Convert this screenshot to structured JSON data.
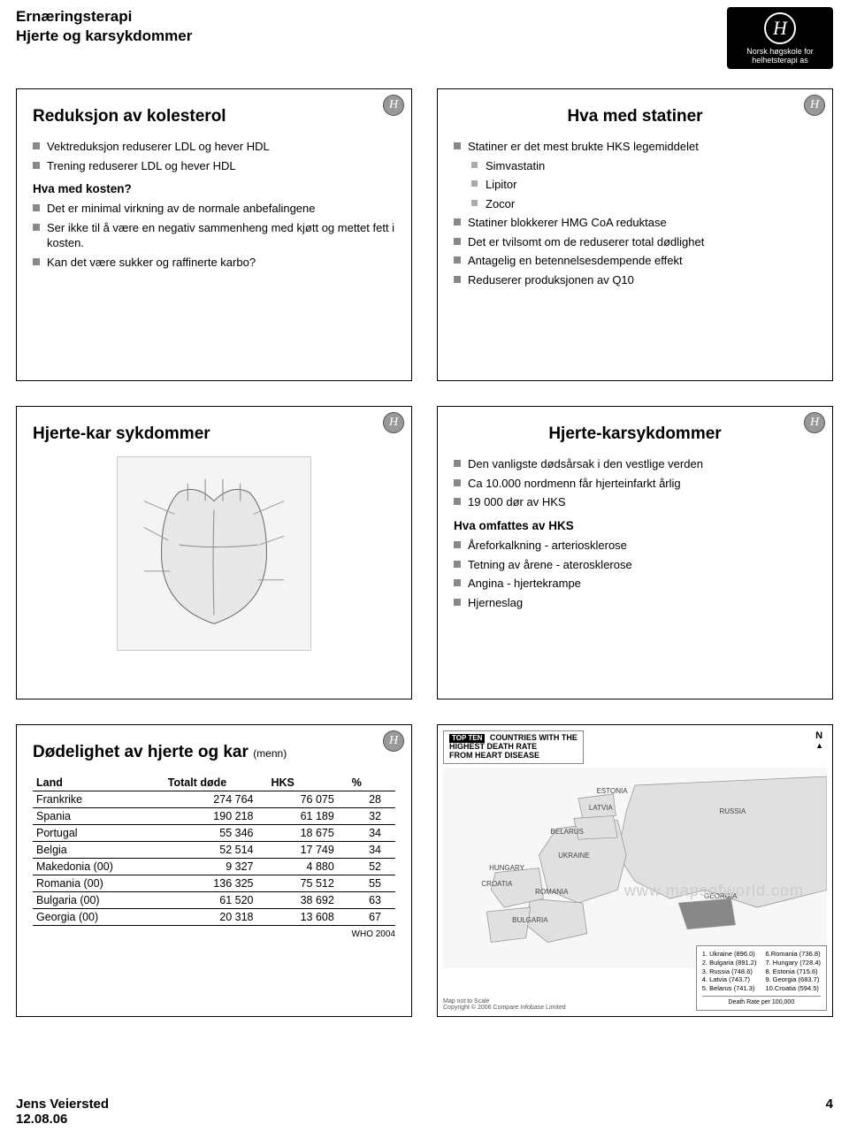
{
  "header": {
    "line1": "Ernæringsterapi",
    "line2": "Hjerte og karsykdommer",
    "logo_text": "Norsk høgskole for helhetsterapi as",
    "logo_letter": "H"
  },
  "colors": {
    "bullet": "#888888",
    "sub_bullet": "#aaaaaa",
    "border": "#000000",
    "map_bg": "#f7f7f7",
    "logo_bg": "#000000"
  },
  "slide1": {
    "title": "Reduksjon av kolesterol",
    "items": [
      "Vektreduksjon reduserer LDL og hever HDL",
      "Trening reduserer LDL og hever HDL"
    ],
    "subheading": "Hva med kosten?",
    "items2": [
      "Det er minimal virkning av de normale anbefalingene",
      "Ser ikke til å være en negativ sammenheng med kjøtt og mettet fett i kosten.",
      "Kan det være sukker og raffinerte karbo?"
    ]
  },
  "slide2": {
    "title": "Hva med statiner",
    "items": [
      {
        "text": "Statiner er det mest brukte HKS legemiddelet",
        "sub": false
      },
      {
        "text": "Simvastatin",
        "sub": true
      },
      {
        "text": "Lipitor",
        "sub": true
      },
      {
        "text": "Zocor",
        "sub": true
      },
      {
        "text": "Statiner blokkerer HMG CoA reduktase",
        "sub": false
      },
      {
        "text": "Det er tvilsomt om de reduserer total dødlighet",
        "sub": false
      },
      {
        "text": "Antagelig en betennelsesdempende effekt",
        "sub": false
      },
      {
        "text": "Reduserer produksjonen av Q10",
        "sub": false
      }
    ]
  },
  "slide3": {
    "title": "Hjerte-kar sykdommer"
  },
  "slide4": {
    "title": "Hjerte-karsykdommer",
    "items1": [
      "Den vanligste dødsårsak i den vestlige verden",
      "Ca 10.000 nordmenn får hjerteinfarkt årlig",
      "19 000 dør av HKS"
    ],
    "subheading": "Hva omfattes av HKS",
    "items2": [
      "Åreforkalkning - arteriosklerose",
      "Tetning av årene - aterosklerose",
      "Angina - hjertekrampe",
      "Hjerneslag"
    ]
  },
  "slide5": {
    "title": "Dødelighet av hjerte og kar",
    "title_suffix": "(menn)",
    "columns": [
      "Land",
      "Totalt døde",
      "HKS",
      "%"
    ],
    "rows": [
      [
        "Frankrike",
        "274 764",
        "76 075",
        "28"
      ],
      [
        "Spania",
        "190 218",
        "61 189",
        "32"
      ],
      [
        "Portugal",
        "55 346",
        "18 675",
        "34"
      ],
      [
        "Belgia",
        "52 514",
        "17 749",
        "34"
      ],
      [
        "Makedonia (00)",
        "9 327",
        "4 880",
        "52"
      ],
      [
        "Romania (00)",
        "136 325",
        "75 512",
        "55"
      ],
      [
        "Bulgaria (00)",
        "61 520",
        "38 692",
        "63"
      ],
      [
        "Georgia (00)",
        "20 318",
        "13 608",
        "67"
      ]
    ],
    "source": "WHO 2004"
  },
  "slide6": {
    "topten": "TOP TEN",
    "title_line1": "COUNTRIES WITH THE",
    "title_line2": "HIGHEST DEATH RATE",
    "title_line3": "FROM HEART DISEASE",
    "north": "N",
    "labels": [
      "ESTONIA",
      "LATVIA",
      "BELARUS",
      "UKRAINE",
      "HUNGARY",
      "CROATIA",
      "ROMANIA",
      "BULGARIA",
      "RUSSIA",
      "GEORGIA"
    ],
    "watermark": "www.mapsofworld.com",
    "legend_left": [
      "1. Ukraine (896.0)",
      "2. Bulgaria (891.2)",
      "3. Russia (748.6)",
      "4. Latvia (743.7)",
      "5. Belarus (741.3)"
    ],
    "legend_right": [
      "6.Romania (736.8)",
      "7. Hungary (728.4)",
      "8. Estonia (715.6)",
      "9. Georgia (683.7)",
      "10.Croatia (594.5)"
    ],
    "legend_title": "Death Rate per 100,000",
    "footer1": "Map not to Scale",
    "footer2": "Copyright © 2006 Compare Infobase Limited"
  },
  "footer": {
    "author": "Jens Veiersted",
    "date": "12.08.06",
    "page": "4"
  }
}
